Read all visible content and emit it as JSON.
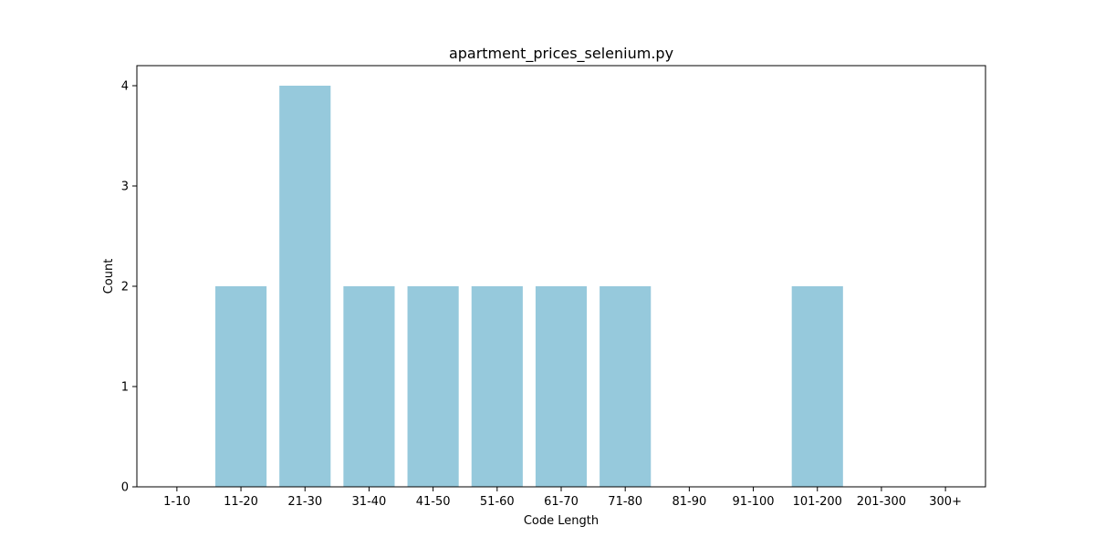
{
  "chart_data": {
    "type": "bar",
    "title": "apartment_prices_selenium.py",
    "xlabel": "Code Length",
    "ylabel": "Count",
    "categories": [
      "1-10",
      "11-20",
      "21-30",
      "31-40",
      "41-50",
      "51-60",
      "61-70",
      "71-80",
      "81-90",
      "91-100",
      "101-200",
      "201-300",
      "300+"
    ],
    "values": [
      0,
      2,
      4,
      2,
      2,
      2,
      2,
      2,
      0,
      0,
      2,
      0,
      0
    ],
    "ylim": [
      0,
      4.2
    ],
    "yticks": [
      0,
      1,
      2,
      3,
      4
    ],
    "bar_color": "#96c9dc",
    "grid": false,
    "legend": "none"
  }
}
